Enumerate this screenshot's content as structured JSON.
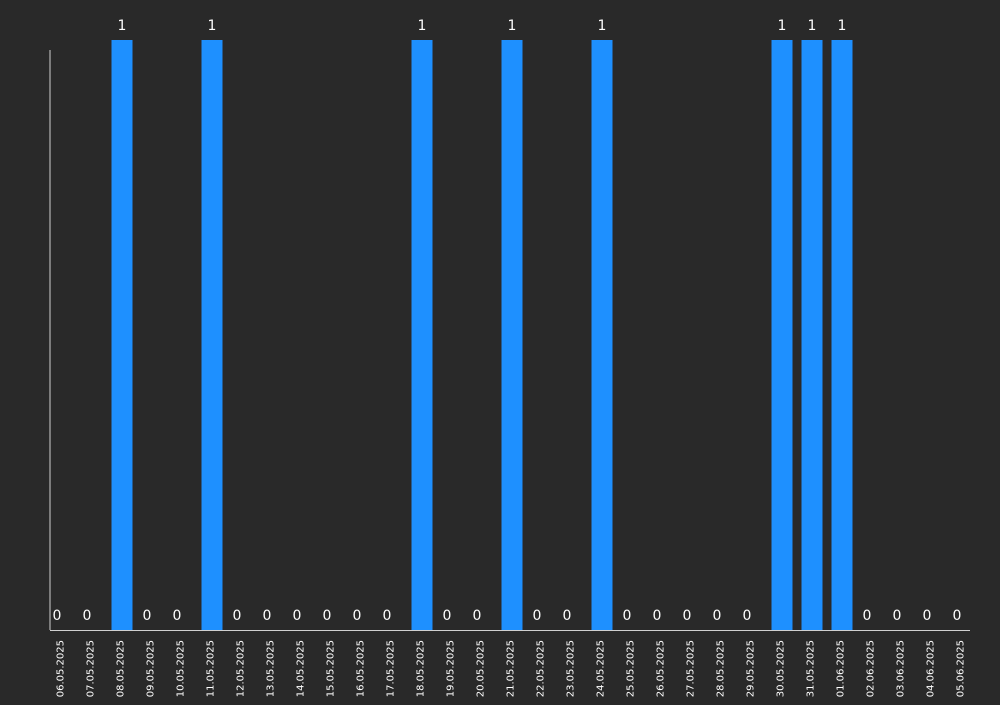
{
  "chart_data": {
    "type": "bar",
    "title": "",
    "xlabel": "",
    "ylabel": "",
    "ylim": [
      0,
      1
    ],
    "grid": false,
    "colors": {
      "background": "#292929",
      "bar": "#1e90ff",
      "axis": "#d0d0d0",
      "text": "#ffffff"
    },
    "categories": [
      "06.05.2025",
      "07.05.2025",
      "08.05.2025",
      "09.05.2025",
      "10.05.2025",
      "11.05.2025",
      "12.05.2025",
      "13.05.2025",
      "14.05.2025",
      "15.05.2025",
      "16.05.2025",
      "17.05.2025",
      "18.05.2025",
      "19.05.2025",
      "20.05.2025",
      "21.05.2025",
      "22.05.2025",
      "23.05.2025",
      "24.05.2025",
      "25.05.2025",
      "26.05.2025",
      "27.05.2025",
      "28.05.2025",
      "29.05.2025",
      "30.05.2025",
      "31.05.2025",
      "01.06.2025",
      "02.06.2025",
      "03.06.2025",
      "04.06.2025",
      "05.06.2025"
    ],
    "values": [
      0,
      0,
      1,
      0,
      0,
      1,
      0,
      0,
      0,
      0,
      0,
      0,
      1,
      0,
      0,
      1,
      0,
      0,
      1,
      0,
      0,
      0,
      0,
      0,
      1,
      1,
      1,
      0,
      0,
      0,
      0
    ],
    "data_labels": [
      "0",
      "0",
      "1",
      "0",
      "0",
      "1",
      "0",
      "0",
      "0",
      "0",
      "0",
      "0",
      "1",
      "0",
      "0",
      "1",
      "0",
      "0",
      "1",
      "0",
      "0",
      "0",
      "0",
      "0",
      "1",
      "1",
      "1",
      "0",
      "0",
      "0",
      "0"
    ]
  }
}
